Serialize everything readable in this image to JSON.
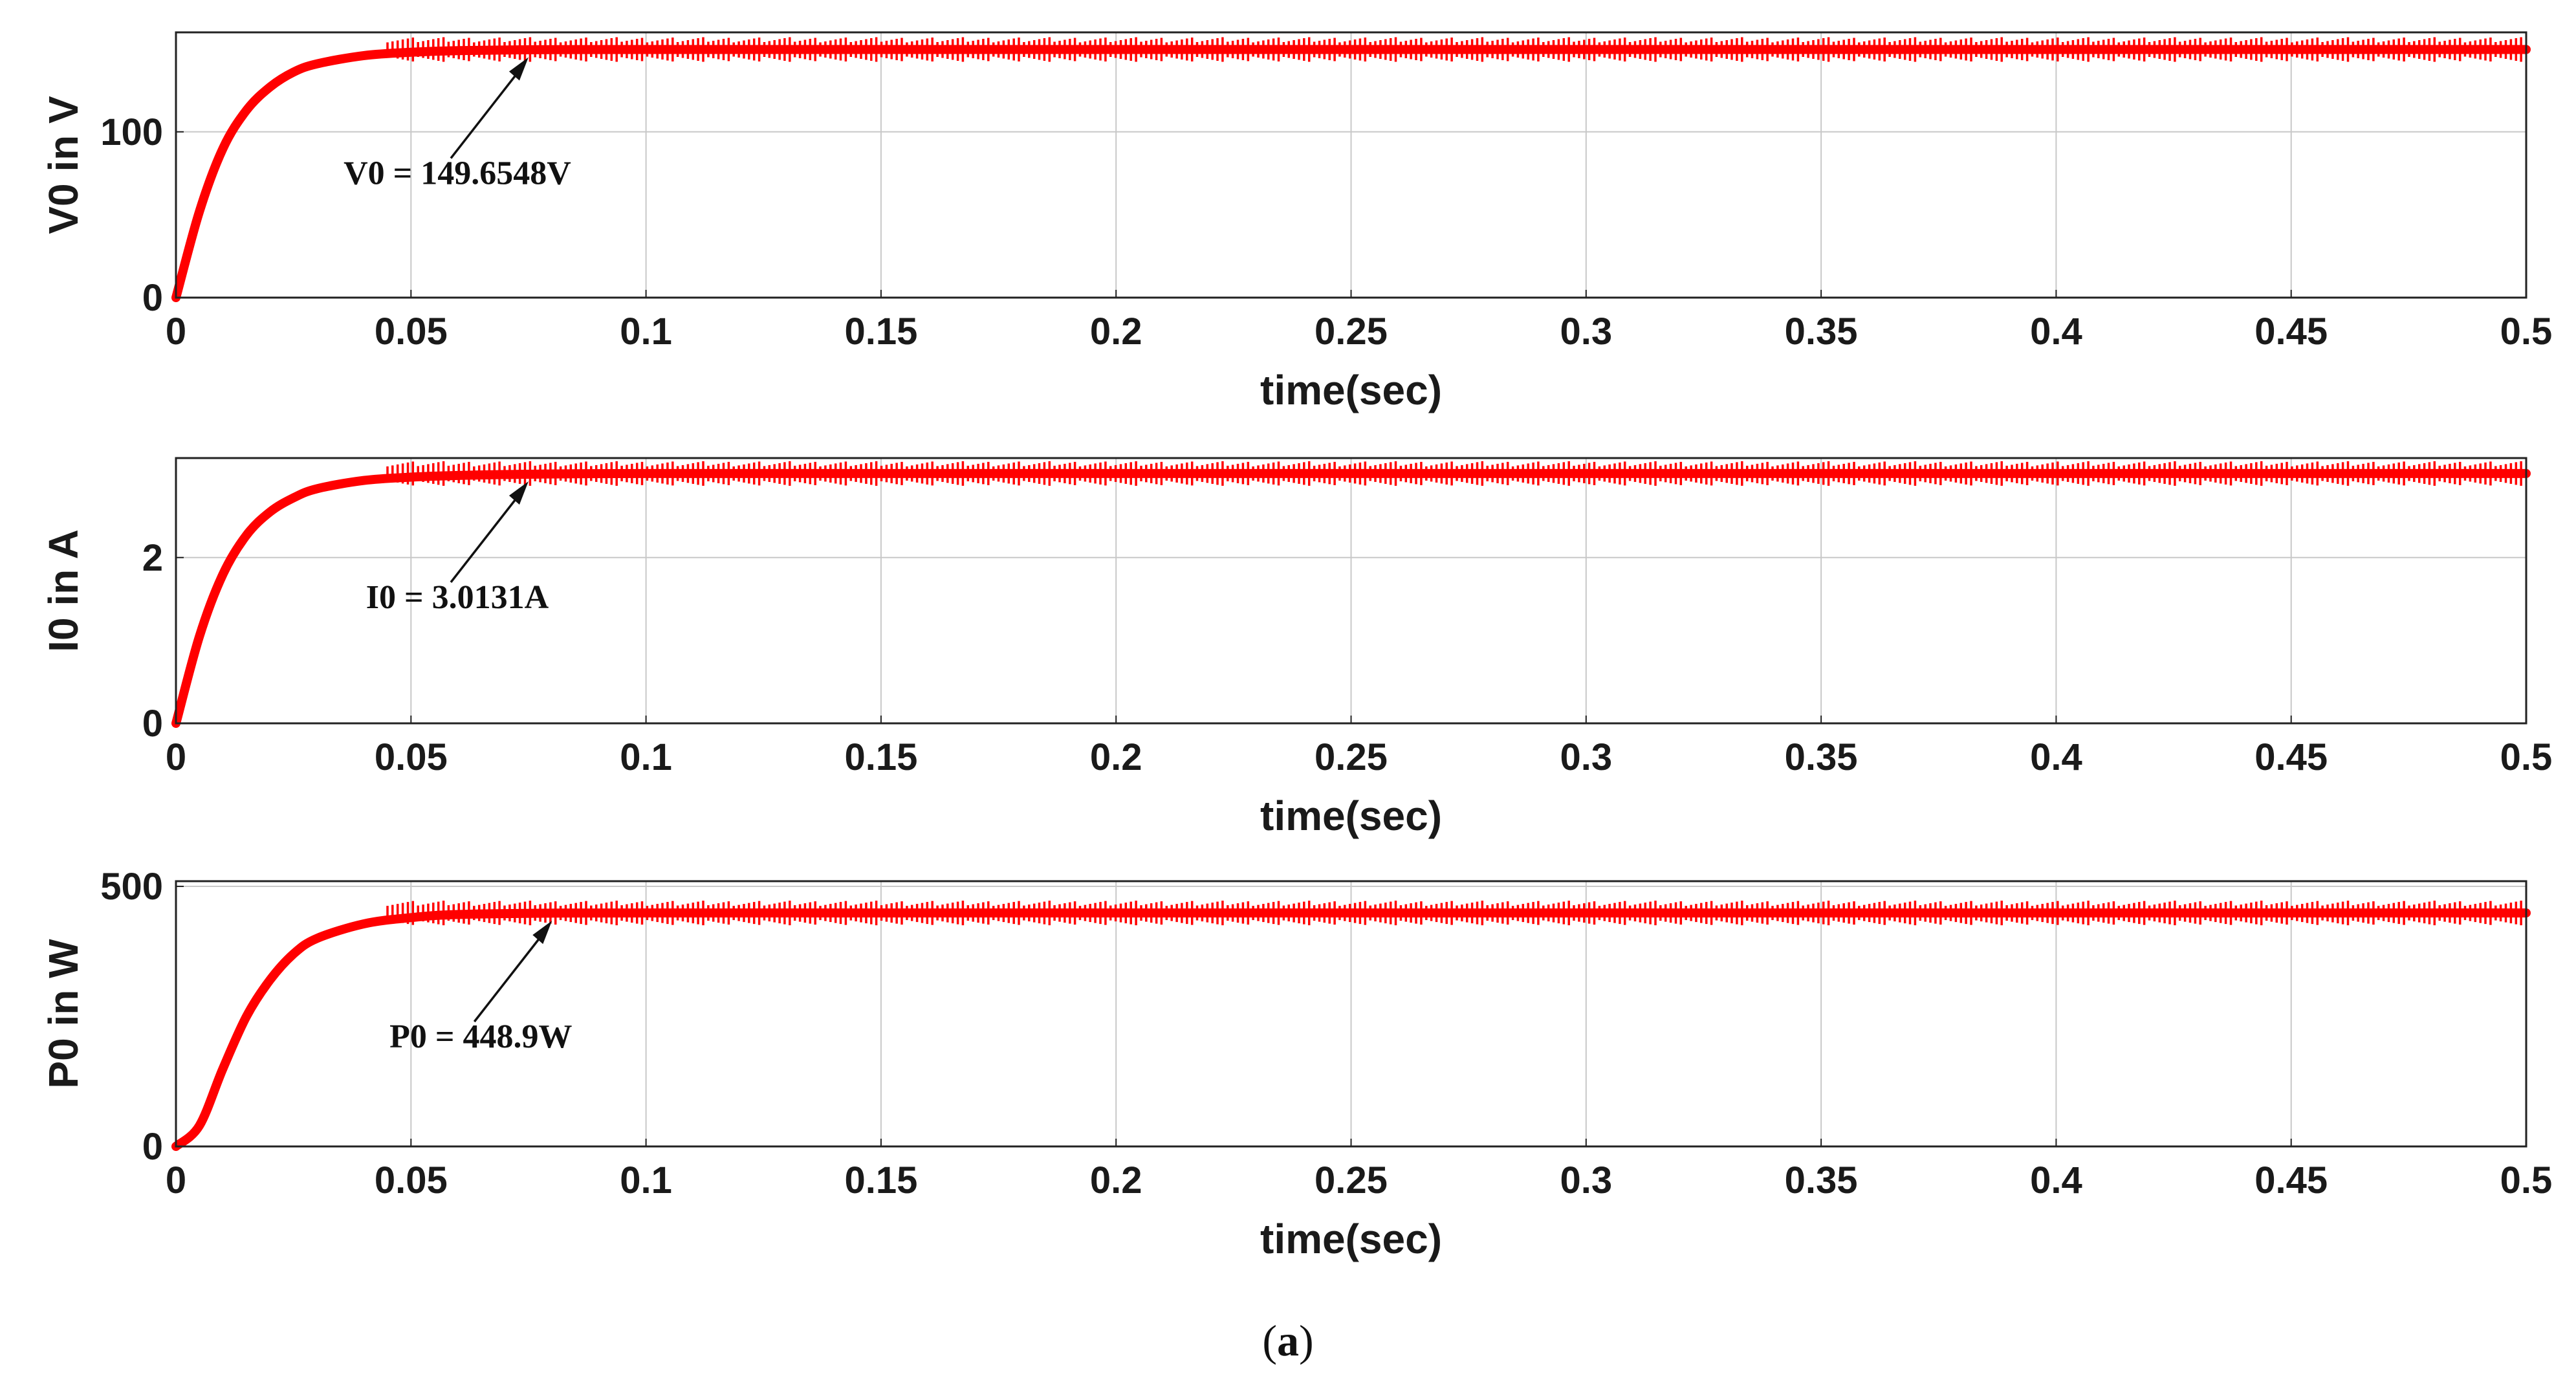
{
  "chart_data": [
    {
      "type": "line",
      "ylabel": "V0 in V",
      "xlabel": "time(sec)",
      "xlim": [
        0,
        0.5
      ],
      "ylim": [
        0,
        160
      ],
      "x_ticks": [
        "0",
        "0.05",
        "0.1",
        "0.15",
        "0.2",
        "0.25",
        "0.3",
        "0.35",
        "0.4",
        "0.45",
        "0.5"
      ],
      "y_ticks": [
        "0",
        "100"
      ],
      "y_tick_values": [
        0,
        100
      ],
      "grid": true,
      "series": [
        {
          "color": "#ff0000",
          "x": [
            0,
            0.005,
            0.01,
            0.015,
            0.02,
            0.025,
            0.03,
            0.04,
            0.05,
            0.06,
            0.075,
            0.1,
            0.2,
            0.3,
            0.4,
            0.5
          ],
          "y": [
            0,
            52,
            90,
            113,
            127,
            136,
            141,
            146,
            148,
            149,
            149.5,
            149.65,
            149.65,
            149.65,
            149.65,
            149.65
          ]
        }
      ],
      "annotation": {
        "text": "V0 = 149.6548V",
        "x": 0.075,
        "y": 149.65
      }
    },
    {
      "type": "line",
      "ylabel": "I0 in A",
      "xlabel": "time(sec)",
      "xlim": [
        0,
        0.5
      ],
      "ylim": [
        0,
        3.2
      ],
      "x_ticks": [
        "0",
        "0.05",
        "0.1",
        "0.15",
        "0.2",
        "0.25",
        "0.3",
        "0.35",
        "0.4",
        "0.45",
        "0.5"
      ],
      "y_ticks": [
        "0",
        "2"
      ],
      "y_tick_values": [
        0,
        2
      ],
      "grid": true,
      "series": [
        {
          "color": "#ff0000",
          "x": [
            0,
            0.005,
            0.01,
            0.015,
            0.02,
            0.025,
            0.03,
            0.04,
            0.05,
            0.06,
            0.075,
            0.1,
            0.2,
            0.3,
            0.4,
            0.5
          ],
          "y": [
            0,
            1.05,
            1.8,
            2.27,
            2.55,
            2.72,
            2.83,
            2.93,
            2.97,
            2.99,
            3.005,
            3.0131,
            3.0131,
            3.0131,
            3.0131,
            3.0131
          ]
        }
      ],
      "annotation": {
        "text": "I0 = 3.0131A",
        "x": 0.075,
        "y": 3.0131
      }
    },
    {
      "type": "line",
      "ylabel": "P0 in W",
      "xlabel": "time(sec)",
      "xlim": [
        0,
        0.5
      ],
      "ylim": [
        0,
        510
      ],
      "x_ticks": [
        "0",
        "0.05",
        "0.1",
        "0.15",
        "0.2",
        "0.25",
        "0.3",
        "0.35",
        "0.4",
        "0.45",
        "0.5"
      ],
      "y_ticks": [
        "0",
        "500"
      ],
      "y_tick_values": [
        0,
        500
      ],
      "grid": true,
      "series": [
        {
          "color": "#ff0000",
          "x": [
            0,
            0.005,
            0.01,
            0.015,
            0.02,
            0.025,
            0.03,
            0.04,
            0.05,
            0.06,
            0.08,
            0.1,
            0.2,
            0.3,
            0.4,
            0.5
          ],
          "y": [
            0,
            40,
            150,
            250,
            320,
            370,
            400,
            428,
            440,
            446,
            448.5,
            448.9,
            448.9,
            448.9,
            448.9,
            448.9
          ]
        }
      ],
      "annotation": {
        "text": "P0 = 448.9W",
        "x": 0.08,
        "y": 448.9
      }
    }
  ],
  "caption": {
    "open": "(",
    "letter": "a",
    "close": ")"
  }
}
